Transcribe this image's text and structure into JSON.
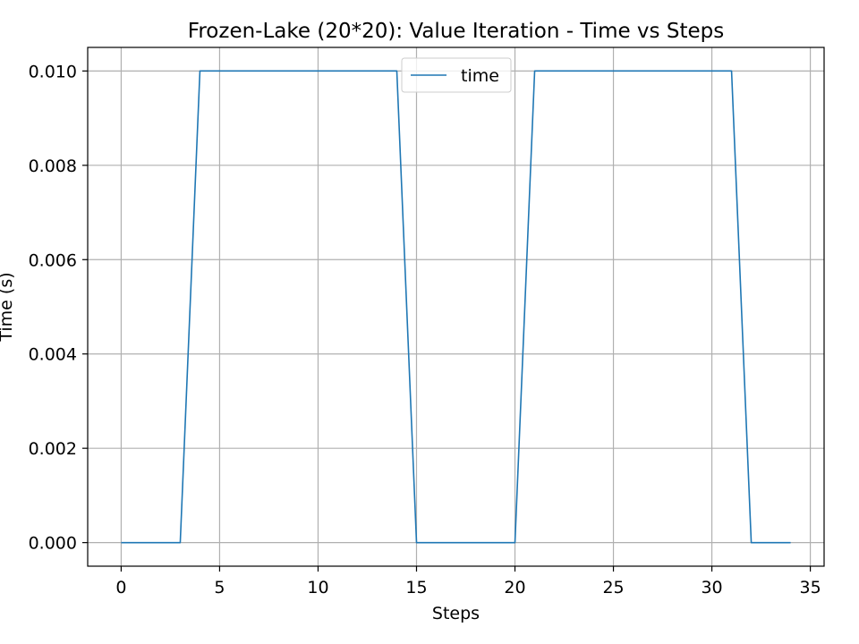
{
  "chart_data": {
    "type": "line",
    "title": "Frozen-Lake (20*20): Value Iteration - Time vs Steps",
    "xlabel": "Steps",
    "ylabel": "Time (s)",
    "xlim": [
      -1.7,
      35.7
    ],
    "ylim": [
      -0.0005,
      0.0105
    ],
    "xticks": [
      0,
      5,
      10,
      15,
      20,
      25,
      30,
      35
    ],
    "xtick_labels": [
      "0",
      "5",
      "10",
      "15",
      "20",
      "25",
      "30",
      "35"
    ],
    "yticks": [
      0.0,
      0.002,
      0.004,
      0.006,
      0.008,
      0.01
    ],
    "ytick_labels": [
      "0.000",
      "0.002",
      "0.004",
      "0.006",
      "0.008",
      "0.010"
    ],
    "grid": true,
    "legend_position": "top-center",
    "series": [
      {
        "name": "time",
        "color": "#1f77b4",
        "x": [
          0,
          1,
          2,
          3,
          4,
          5,
          6,
          7,
          8,
          9,
          10,
          11,
          12,
          13,
          14,
          15,
          16,
          17,
          18,
          19,
          20,
          21,
          22,
          23,
          24,
          25,
          26,
          27,
          28,
          29,
          30,
          31,
          32,
          33,
          34
        ],
        "y": [
          0,
          0,
          0,
          0,
          0.01,
          0.01,
          0.01,
          0.01,
          0.01,
          0.01,
          0.01,
          0.01,
          0.01,
          0.01,
          0.01,
          0,
          0,
          0,
          0,
          0,
          0,
          0.01,
          0.01,
          0.01,
          0.01,
          0.01,
          0.01,
          0.01,
          0.01,
          0.01,
          0.01,
          0.01,
          0,
          0,
          0
        ]
      }
    ]
  }
}
